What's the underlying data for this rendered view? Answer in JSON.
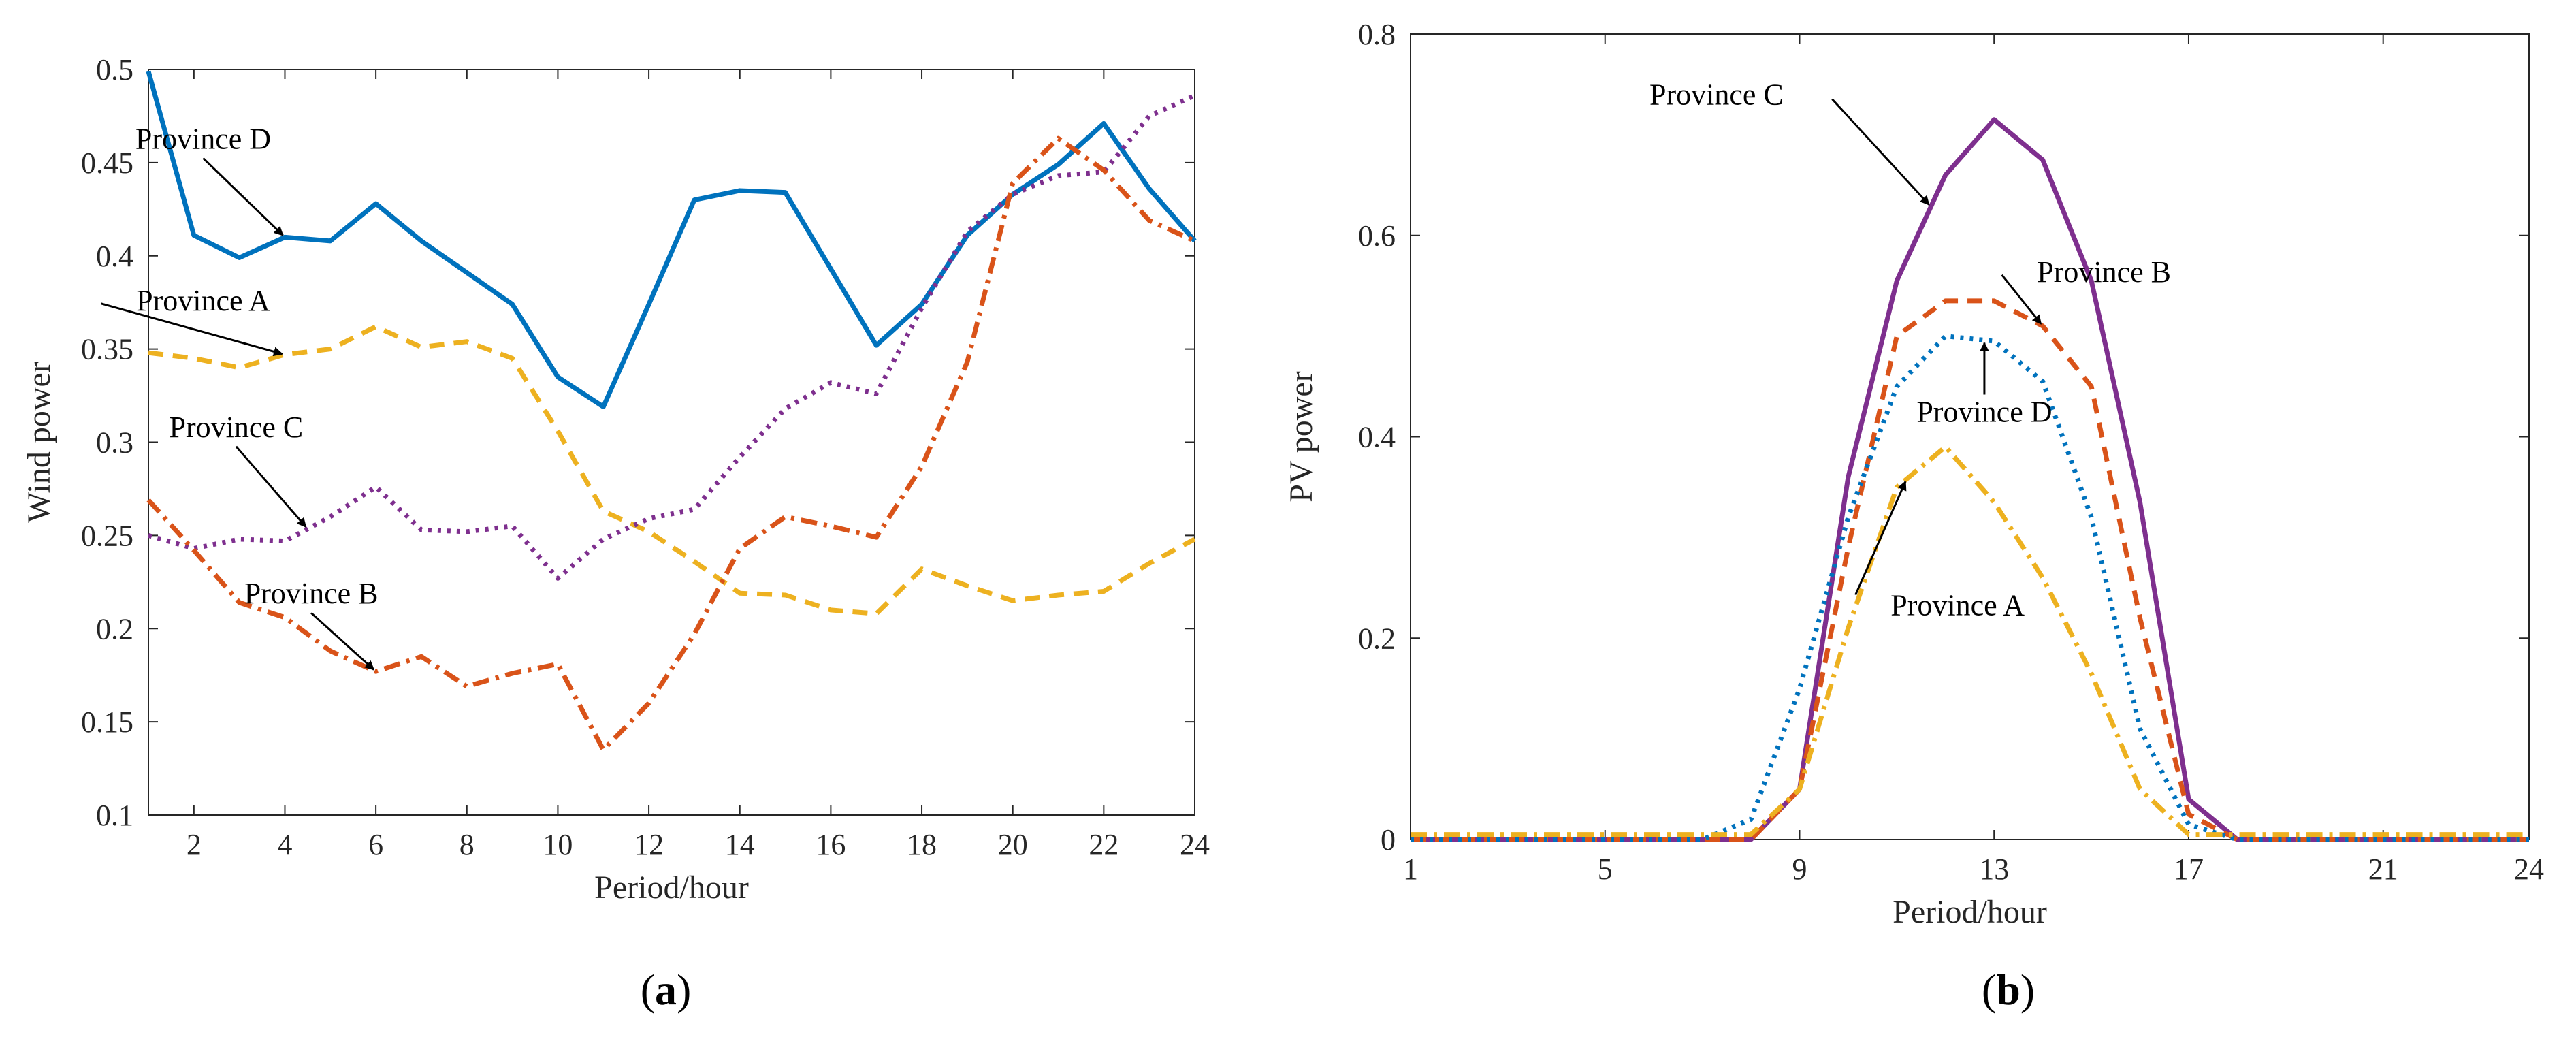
{
  "chart_data": [
    {
      "type": "line",
      "panel_label_open": "(",
      "panel_label": "a",
      "panel_label_close": ")",
      "xlabel": "Period/hour",
      "ylabel": "Wind power",
      "xlim": [
        1,
        24
      ],
      "ylim": [
        0.1,
        0.5
      ],
      "xticks": [
        2,
        4,
        6,
        8,
        10,
        12,
        14,
        16,
        18,
        20,
        22,
        24
      ],
      "yticks": [
        0.1,
        0.15,
        0.2,
        0.25,
        0.3,
        0.35,
        0.4,
        0.45,
        0.5
      ],
      "ytick_labels": [
        "0.1",
        "0.15",
        "0.2",
        "0.25",
        "0.3",
        "0.35",
        "0.4",
        "0.45",
        "0.5"
      ],
      "x": [
        1,
        2,
        3,
        4,
        5,
        6,
        7,
        8,
        9,
        10,
        11,
        12,
        13,
        14,
        15,
        16,
        17,
        18,
        19,
        20,
        21,
        22,
        23,
        24
      ],
      "series": [
        {
          "name": "Province D",
          "color": "#0072BD",
          "dash": "solid",
          "values": [
            0.499,
            0.411,
            0.399,
            0.41,
            0.408,
            0.428,
            0.408,
            0.391,
            0.374,
            0.335,
            0.319,
            0.374,
            0.43,
            0.435,
            0.434,
            0.393,
            0.352,
            0.374,
            0.411,
            0.433,
            0.449,
            0.471,
            0.436,
            0.408
          ]
        },
        {
          "name": "Province A",
          "color": "#EDB120",
          "dash": "dashed",
          "values": [
            0.348,
            0.345,
            0.34,
            0.347,
            0.35,
            0.362,
            0.351,
            0.354,
            0.345,
            0.306,
            0.263,
            0.252,
            0.236,
            0.219,
            0.218,
            0.21,
            0.208,
            0.232,
            0.223,
            0.215,
            0.218,
            0.22,
            0.235,
            0.248
          ]
        },
        {
          "name": "Province C",
          "color": "#7E2F8E",
          "dash": "dotted",
          "values": [
            0.25,
            0.243,
            0.248,
            0.247,
            0.26,
            0.276,
            0.253,
            0.252,
            0.255,
            0.227,
            0.248,
            0.259,
            0.264,
            0.292,
            0.318,
            0.332,
            0.326,
            0.372,
            0.413,
            0.433,
            0.443,
            0.445,
            0.475,
            0.486
          ]
        },
        {
          "name": "Province B",
          "color": "#D95319",
          "dash": "dashdot",
          "values": [
            0.269,
            0.242,
            0.214,
            0.206,
            0.188,
            0.177,
            0.185,
            0.169,
            0.176,
            0.181,
            0.135,
            0.16,
            0.197,
            0.243,
            0.26,
            0.255,
            0.249,
            0.287,
            0.343,
            0.439,
            0.463,
            0.446,
            0.419,
            0.408
          ]
        }
      ],
      "annotations": [
        {
          "text": "Province D",
          "series": "Province D",
          "x": 4
        },
        {
          "text": "Province A",
          "series": "Province A",
          "x": 4
        },
        {
          "text": "Province C",
          "series": "Province C",
          "x": 4.5
        },
        {
          "text": "Province B",
          "series": "Province B",
          "x": 6
        }
      ]
    },
    {
      "type": "line",
      "panel_label_open": "(",
      "panel_label": "b",
      "panel_label_close": ")",
      "xlabel": "Period/hour",
      "ylabel": "PV power",
      "xlim": [
        1,
        24
      ],
      "ylim": [
        0,
        0.8
      ],
      "xticks": [
        1,
        5,
        9,
        13,
        17,
        21,
        24
      ],
      "yticks": [
        0,
        0.2,
        0.4,
        0.6,
        0.8
      ],
      "ytick_labels": [
        "0",
        "0.2",
        "0.4",
        "0.6",
        "0.8"
      ],
      "x": [
        1,
        2,
        3,
        4,
        5,
        6,
        7,
        8,
        9,
        10,
        11,
        12,
        13,
        14,
        15,
        16,
        17,
        18,
        19,
        20,
        21,
        22,
        23,
        24
      ],
      "series": [
        {
          "name": "Province C",
          "color": "#7E2F8E",
          "dash": "solid",
          "values": [
            0,
            0,
            0,
            0,
            0,
            0,
            0,
            0,
            0.05,
            0.36,
            0.555,
            0.66,
            0.715,
            0.675,
            0.555,
            0.335,
            0.04,
            0,
            0,
            0,
            0,
            0,
            0,
            0
          ]
        },
        {
          "name": "Province B",
          "color": "#D95319",
          "dash": "dashed",
          "values": [
            0,
            0,
            0,
            0,
            0,
            0,
            0,
            0,
            0.05,
            0.29,
            0.5,
            0.535,
            0.535,
            0.51,
            0.45,
            0.22,
            0.025,
            0,
            0,
            0,
            0,
            0,
            0,
            0
          ]
        },
        {
          "name": "Province D",
          "color": "#0072BD",
          "dash": "dotted",
          "values": [
            0,
            0,
            0,
            0,
            0,
            0,
            0,
            0.02,
            0.15,
            0.32,
            0.45,
            0.5,
            0.495,
            0.455,
            0.32,
            0.11,
            0.015,
            0,
            0,
            0,
            0,
            0,
            0,
            0
          ]
        },
        {
          "name": "Province A",
          "color": "#EDB120",
          "dash": "dashdot",
          "values": [
            0.005,
            0.005,
            0.005,
            0.005,
            0.005,
            0.005,
            0.005,
            0.005,
            0.05,
            0.21,
            0.35,
            0.39,
            0.335,
            0.26,
            0.165,
            0.05,
            0.005,
            0.005,
            0.005,
            0.005,
            0.005,
            0.005,
            0.005,
            0.005
          ]
        }
      ],
      "annotations": [
        {
          "text": "Province C",
          "series": "Province C",
          "x": 11.7
        },
        {
          "text": "Province B",
          "series": "Province B",
          "x": 14
        },
        {
          "text": "Province D",
          "series": "Province D",
          "x": 12.8
        },
        {
          "text": "Province A",
          "series": "Province A",
          "x": 11.2
        }
      ]
    }
  ]
}
